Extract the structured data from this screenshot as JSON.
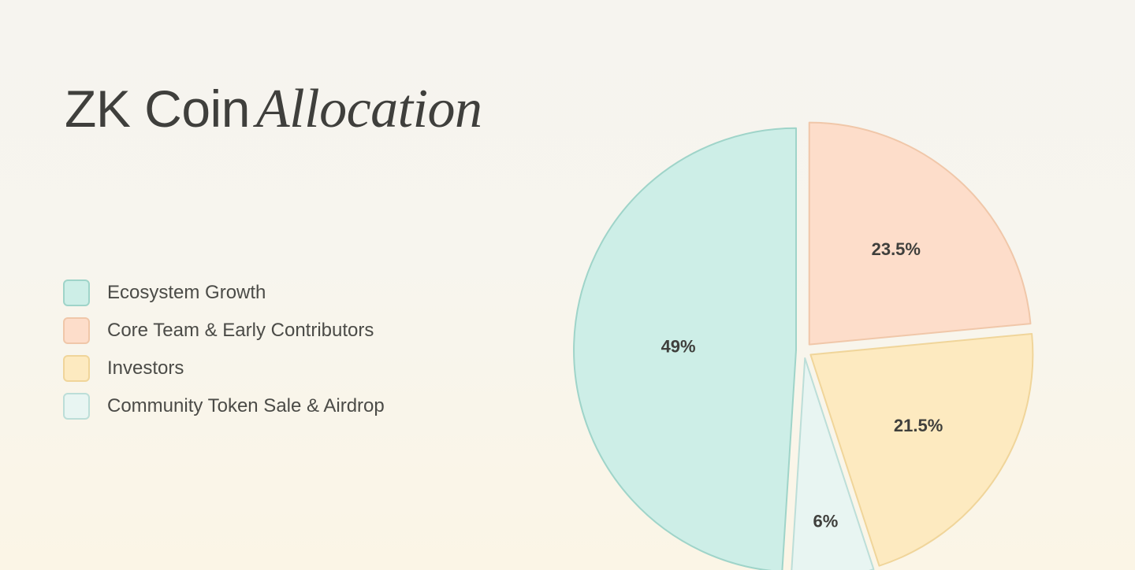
{
  "title": {
    "main": "ZK Coin",
    "accent": "Allocation"
  },
  "colors": {
    "text": "#3f3f3c"
  },
  "chart_data": {
    "type": "pie",
    "title": "ZK Coin Allocation",
    "legend_placement": "left",
    "start_angle": "12 o'clock, clockwise",
    "categories": [
      "Ecosystem Growth",
      "Core Team & Early Contributors",
      "Investors",
      "Community Token Sale & Airdrop"
    ],
    "values": [
      49,
      23.5,
      21.5,
      6
    ],
    "labels": [
      "49%",
      "23.5%",
      "21.5%",
      "6%"
    ],
    "order_clockwise_from_top": [
      "Core Team & Early Contributors",
      "Investors",
      "Community Token Sale & Airdrop",
      "Ecosystem Growth"
    ],
    "exploded": true,
    "fill_colors": [
      "#cdeee7",
      "#fdddca",
      "#fdeac0",
      "#e8f5f2"
    ],
    "stroke_colors": [
      "#9fd4c9",
      "#f0c7a9",
      "#f0d59a",
      "#bcded8"
    ]
  }
}
